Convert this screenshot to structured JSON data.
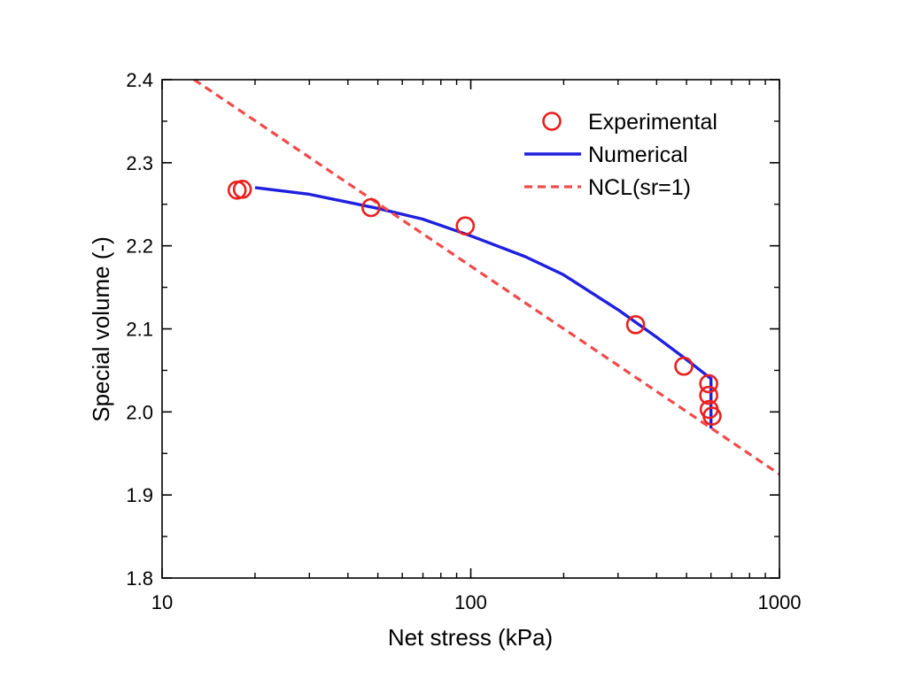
{
  "chart_data": {
    "type": "scatter",
    "title": "",
    "xlabel": "Net stress (kPa)",
    "ylabel": "Special volume (-)",
    "xscale": "log",
    "xlim": [
      10,
      1000
    ],
    "ylim": [
      1.8,
      2.4
    ],
    "x_ticks": [
      10,
      100,
      1000
    ],
    "x_tick_labels": [
      "10",
      "100",
      "1000"
    ],
    "y_ticks": [
      1.8,
      1.9,
      2.0,
      2.1,
      2.2,
      2.3,
      2.4
    ],
    "y_tick_labels": [
      "1.8",
      "1.9",
      "2.0",
      "2.1",
      "2.2",
      "2.3",
      "2.4"
    ],
    "grid": false,
    "legend_position": "top-right",
    "series": [
      {
        "name": "Experimental",
        "type": "scatter",
        "marker": "open-circle",
        "color": "#e8201f",
        "points": [
          {
            "x": 17.5,
            "y": 2.267
          },
          {
            "x": 18.2,
            "y": 2.268
          },
          {
            "x": 47.5,
            "y": 2.246
          },
          {
            "x": 96,
            "y": 2.224
          },
          {
            "x": 342,
            "y": 2.105
          },
          {
            "x": 490,
            "y": 2.055
          },
          {
            "x": 590,
            "y": 2.034
          },
          {
            "x": 590,
            "y": 2.02
          },
          {
            "x": 592,
            "y": 2.003
          },
          {
            "x": 605,
            "y": 1.995
          }
        ]
      },
      {
        "name": "Numerical",
        "type": "line",
        "style": "solid",
        "color": "#1f1fe0",
        "points": [
          {
            "x": 20,
            "y": 2.27
          },
          {
            "x": 30,
            "y": 2.262
          },
          {
            "x": 50,
            "y": 2.245
          },
          {
            "x": 70,
            "y": 2.232
          },
          {
            "x": 100,
            "y": 2.212
          },
          {
            "x": 150,
            "y": 2.187
          },
          {
            "x": 200,
            "y": 2.165
          },
          {
            "x": 300,
            "y": 2.123
          },
          {
            "x": 400,
            "y": 2.09
          },
          {
            "x": 500,
            "y": 2.063
          },
          {
            "x": 600,
            "y": 2.04
          },
          {
            "x": 600,
            "y": 1.98
          }
        ]
      },
      {
        "name": "NCL(sr=1)",
        "type": "line",
        "style": "dashed",
        "color": "#f04a4a",
        "points": [
          {
            "x": 12.7,
            "y": 2.4
          },
          {
            "x": 1000,
            "y": 1.925
          }
        ]
      }
    ]
  }
}
